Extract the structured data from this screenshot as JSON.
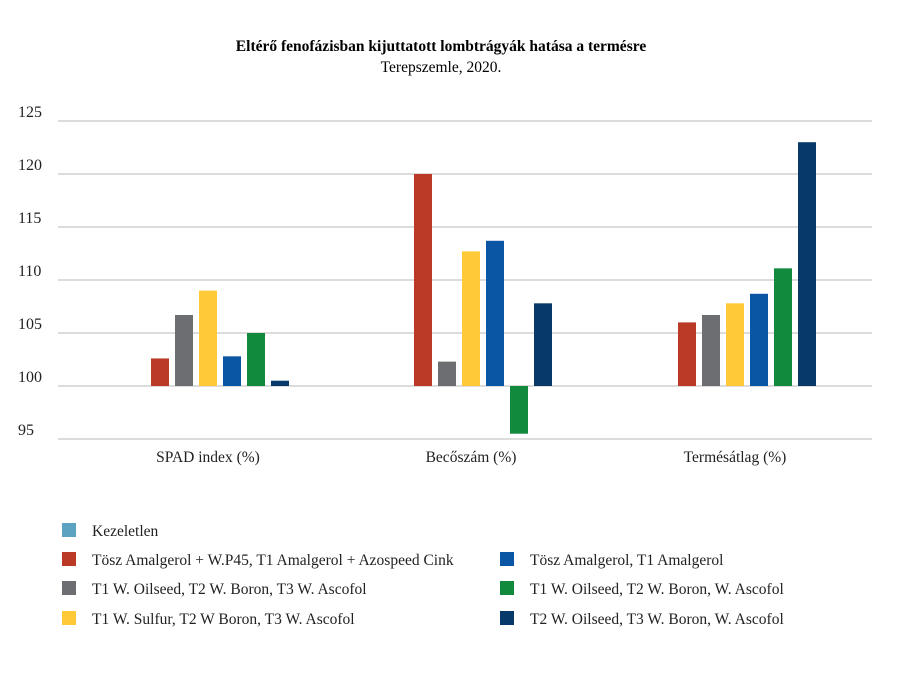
{
  "chart_data": {
    "type": "bar",
    "title": "Eltérő fenofázisban kijuttatott lombtrágyák hatása a termésre",
    "subtitle": "Terepszemle, 2020.",
    "categories": [
      "SPAD index (%)",
      "Becőszám (%)",
      "Termésátlag (%)"
    ],
    "ylim": [
      95,
      125
    ],
    "yticks": [
      95,
      100,
      105,
      110,
      115,
      120,
      125
    ],
    "baseline": 100,
    "grid": true,
    "legend_position": "bottom",
    "series": [
      {
        "name": "Kezeletlen",
        "color": "#5ba3c0",
        "values": [
          100,
          100,
          100
        ]
      },
      {
        "name": "Tösz Amalgerol + W.P45, T1 Amalgerol + Azospeed Cink",
        "color": "#bb3a26",
        "values": [
          102.6,
          120,
          106
        ]
      },
      {
        "name": "T1 W. Oilseed, T2 W. Boron, T3 W. Ascofol",
        "color": "#6d6e71",
        "values": [
          106.7,
          102.3,
          106.7
        ]
      },
      {
        "name": "T1 W. Sulfur, T2 W Boron, T3 W. Ascofol",
        "color": "#ffc937",
        "values": [
          109,
          112.7,
          107.8
        ]
      },
      {
        "name": "Tösz Amalgerol, T1 Amalgerol",
        "color": "#0a56a4",
        "values": [
          102.8,
          113.7,
          108.7
        ]
      },
      {
        "name": "T1 W. Oilseed, T2 W. Boron, W. Ascofol",
        "color": "#118a3d",
        "values": [
          105,
          95.5,
          111.1
        ]
      },
      {
        "name": "T2 W. Oilseed, T3 W. Boron, W. Ascofol",
        "color": "#073a6b",
        "values": [
          100.5,
          107.8,
          123
        ]
      }
    ]
  }
}
